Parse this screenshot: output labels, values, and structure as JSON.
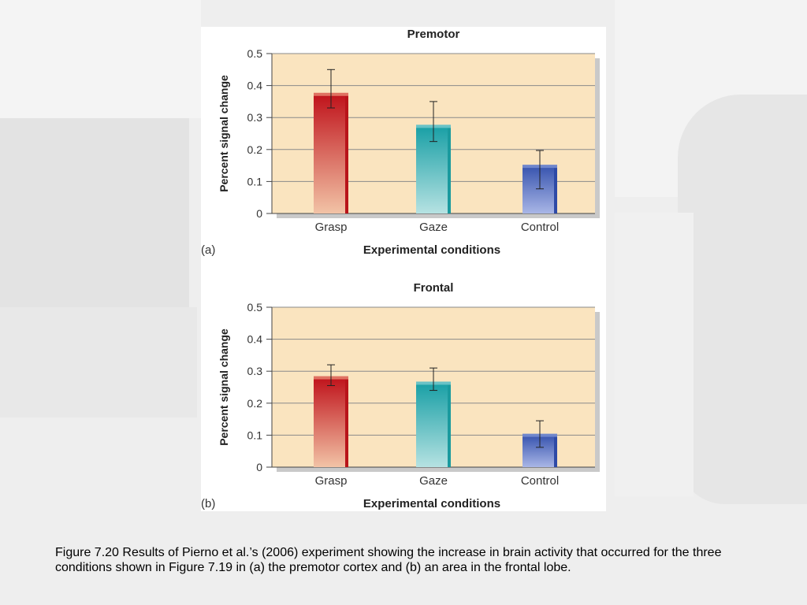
{
  "slide": {
    "caption": "Figure 7.20 Results of Pierno et al.’s (2006) experiment showing the increase in brain activity that occurred for the three conditions shown in Figure 7.19 in (a) the premotor cortex and (b) an area in the frontal lobe."
  },
  "colors": {
    "plot_bg": "#fae4bf",
    "grid": "#8a8a8a",
    "grasp": "#c0141c",
    "gaze": "#1aa0a6",
    "control": "#3a56b0"
  },
  "chart_data": [
    {
      "type": "bar",
      "panel_label": "(a)",
      "title": "Premotor",
      "xlabel": "Experimental conditions",
      "ylabel": "Percent signal change",
      "categories": [
        "Grasp",
        "Gaze",
        "Control"
      ],
      "values": [
        0.37,
        0.27,
        0.145
      ],
      "error_low": [
        0.33,
        0.225,
        0.077
      ],
      "error_high": [
        0.45,
        0.35,
        0.197
      ],
      "ylim": [
        0,
        0.5
      ],
      "yticks": [
        "0",
        "0.1",
        "0.2",
        "0.3",
        "0.4",
        "0.5"
      ],
      "grid": true
    },
    {
      "type": "bar",
      "panel_label": "(b)",
      "title": "Frontal",
      "xlabel": "Experimental conditions",
      "ylabel": "Percent signal change",
      "categories": [
        "Grasp",
        "Gaze",
        "Control"
      ],
      "values": [
        0.277,
        0.26,
        0.097
      ],
      "error_low": [
        0.255,
        0.24,
        0.062
      ],
      "error_high": [
        0.32,
        0.31,
        0.145
      ],
      "ylim": [
        0,
        0.5
      ],
      "yticks": [
        "0",
        "0.1",
        "0.2",
        "0.3",
        "0.4",
        "0.5"
      ],
      "grid": true
    }
  ]
}
